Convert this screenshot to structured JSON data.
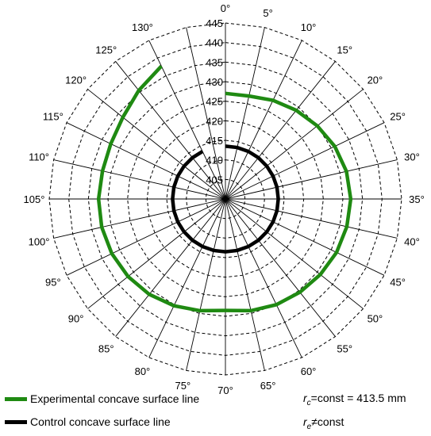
{
  "chart_data": {
    "type": "polar-line",
    "angle_unit": "deg",
    "angle_step_label": 5,
    "angle_labels": [
      "0°",
      "5°",
      "10°",
      "15°",
      "20°",
      "25°",
      "30°",
      "35°",
      "40°",
      "45°",
      "50°",
      "55°",
      "60°",
      "65°",
      "70°",
      "75°",
      "80°",
      "85°",
      "90°",
      "95°",
      "100°",
      "105°",
      "110°",
      "115°",
      "120°",
      "125°",
      "130°"
    ],
    "angle_values": [
      0,
      5,
      10,
      15,
      20,
      25,
      30,
      35,
      40,
      45,
      50,
      55,
      60,
      65,
      70,
      75,
      80,
      85,
      90,
      95,
      100,
      105,
      110,
      115,
      120,
      125,
      130
    ],
    "radial_labels": [
      "405",
      "410",
      "415",
      "420",
      "425",
      "430",
      "435",
      "440",
      "445"
    ],
    "radial_values": [
      405,
      410,
      415,
      420,
      425,
      430,
      435,
      440,
      445
    ],
    "rlim": [
      400,
      445
    ],
    "grid": true,
    "series": [
      {
        "name": "Experimental concave surface line",
        "color": "#1f8a12",
        "points": [
          [
            0,
            427
          ],
          [
            5,
            427
          ],
          [
            10,
            428
          ],
          [
            15,
            429
          ],
          [
            20,
            430
          ],
          [
            25,
            431
          ],
          [
            30,
            431.7
          ],
          [
            35,
            432
          ],
          [
            40,
            431.8
          ],
          [
            45,
            431.5
          ],
          [
            50,
            431
          ],
          [
            55,
            430.5
          ],
          [
            60,
            430
          ],
          [
            65,
            429.3
          ],
          [
            70,
            428.5
          ],
          [
            75,
            429.3
          ],
          [
            80,
            430.3
          ],
          [
            85,
            431.2
          ],
          [
            90,
            431.8
          ],
          [
            95,
            432.2
          ],
          [
            100,
            432.4
          ],
          [
            105,
            432.4
          ],
          [
            110,
            432.2
          ],
          [
            115,
            432.5
          ],
          [
            120,
            433.5
          ],
          [
            125,
            435.5
          ],
          [
            130,
            437.7
          ]
        ]
      },
      {
        "name": "Control concave surface line",
        "color": "#000000",
        "points": [
          [
            0,
            413.5
          ],
          [
            5,
            413.5
          ],
          [
            10,
            413.5
          ],
          [
            15,
            413.5
          ],
          [
            20,
            413.5
          ],
          [
            25,
            413.5
          ],
          [
            30,
            413.5
          ],
          [
            35,
            413.5
          ],
          [
            40,
            413.5
          ],
          [
            45,
            413.5
          ],
          [
            50,
            413.5
          ],
          [
            55,
            413.5
          ],
          [
            60,
            413.5
          ],
          [
            65,
            413.5
          ],
          [
            70,
            413.5
          ],
          [
            75,
            413.5
          ],
          [
            80,
            413.5
          ],
          [
            85,
            413.5
          ],
          [
            90,
            413.5
          ],
          [
            95,
            413.5
          ],
          [
            100,
            413.5
          ],
          [
            105,
            413.5
          ],
          [
            110,
            413.5
          ],
          [
            115,
            413.5
          ],
          [
            120,
            413.5
          ],
          [
            125,
            413.5
          ],
          [
            130,
            413.5
          ]
        ]
      }
    ],
    "legend": [
      {
        "label": "Experimental concave surface line",
        "color": "#1f8a12"
      },
      {
        "label": "Control concave surface line",
        "color": "#000000"
      }
    ],
    "annotations": {
      "rc_symbol": "r",
      "rc_sub": "c",
      "rc_text": "=const = 413.5 mm",
      "re_symbol": "r",
      "re_sub": "e",
      "re_text": "≠const"
    }
  }
}
